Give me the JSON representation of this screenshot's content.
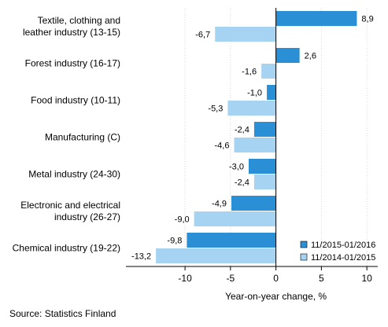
{
  "chart_data": {
    "type": "bar",
    "orientation": "horizontal",
    "categories": [
      "Textile, clothing and|leather industry (13-15)",
      "Forest industry (16-17)",
      "Food industry (10-11)",
      "Manufacturing (C)",
      "Metal industry (24-30)",
      "Electronic and electrical|industry (26-27)",
      "Chemical industry (19-22)"
    ],
    "series": [
      {
        "name": "11/2015-01/2016",
        "color": "#2b8fd6",
        "values": [
          8.9,
          2.6,
          -1.0,
          -2.4,
          -3.0,
          -4.9,
          -9.8
        ],
        "labels": [
          "8,9",
          "2,6",
          "-1,0",
          "-2,4",
          "-3,0",
          "-4,9",
          "-9,8"
        ]
      },
      {
        "name": "11/2014-01/2015",
        "color": "#a6d3f2",
        "values": [
          -6.7,
          -1.6,
          -5.3,
          -4.6,
          -2.4,
          -9.0,
          -13.2
        ],
        "labels": [
          "-6,7",
          "-1,6",
          "-5,3",
          "-4,6",
          "-2,4",
          "-9,0",
          "-13,2"
        ]
      }
    ],
    "xlabel": "Year-on-year change, %",
    "xlim": [
      -16.5,
      11.2
    ],
    "xticks": [
      -10,
      -5,
      0,
      5,
      10
    ],
    "xtick_labels": [
      "-10",
      "-5",
      "0",
      "5",
      "10"
    ],
    "grid": "vertical",
    "legend_position": "bottom-right"
  },
  "source": "Source: Statistics Finland"
}
